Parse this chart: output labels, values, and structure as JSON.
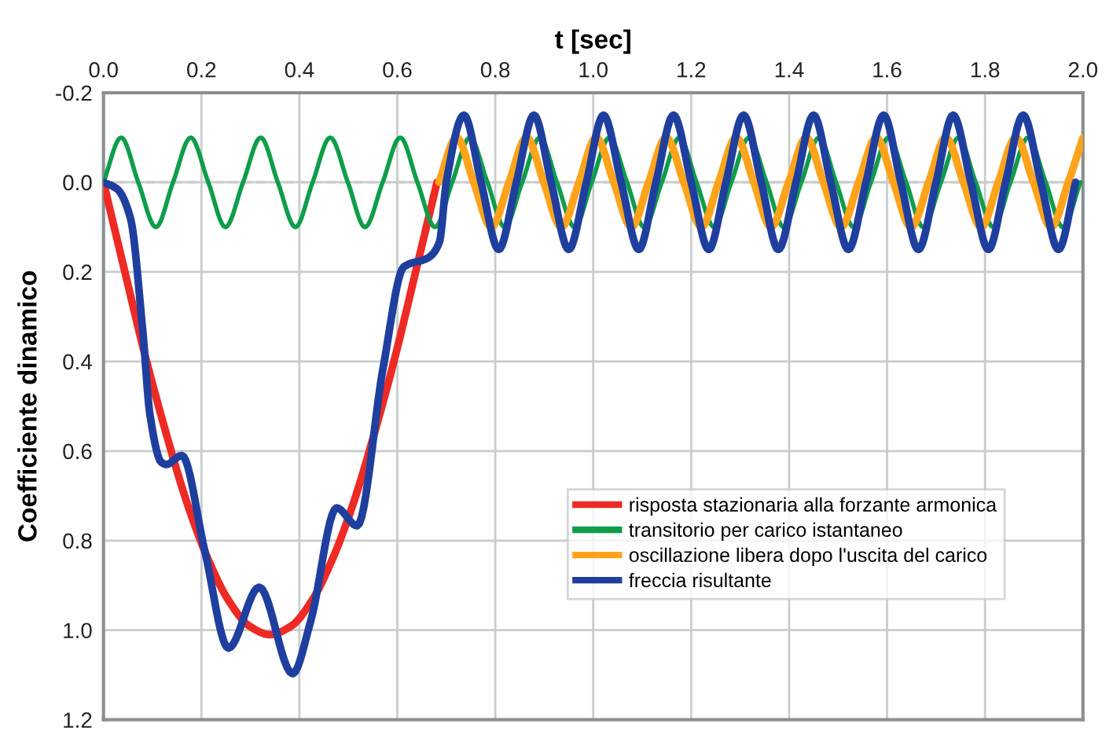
{
  "chart_data": {
    "type": "line",
    "xlabel": "t [sec]",
    "ylabel": "Coefficiente dinamico",
    "xlim": [
      0.0,
      2.0
    ],
    "xticks": [
      {
        "value": 0,
        "label": "0.0"
      },
      0.2,
      0.4,
      0.6,
      0.8,
      {
        "value": 1,
        "label": "1.0"
      },
      1.2,
      1.4,
      1.6,
      1.8,
      {
        "value": 2,
        "label": "2.0"
      }
    ],
    "ylim": [
      1.2,
      -0.2
    ],
    "yticks": [
      -0.2,
      {
        "value": 0,
        "label": "0.0"
      },
      0.2,
      0.4,
      0.6,
      0.8,
      {
        "value": 1,
        "label": "1.0"
      },
      1.2
    ],
    "grid": true,
    "legend": "center right",
    "marker": "none",
    "line_style": "solid",
    "ref_lines": [
      {
        "axis": "y",
        "value": 0.0,
        "color": "#cccccc",
        "line_style": "dashed"
      }
    ],
    "series": [
      {
        "name": "risposta stazionaria alla forzante armonica",
        "color": "#ee2a24",
        "x": [
          0,
          0.043,
          0.085,
          0.128,
          0.17,
          0.213,
          0.255,
          0.298,
          0.34,
          0.383,
          0.426,
          0.468,
          0.511,
          0.553,
          0.596,
          0.638,
          0.681
        ],
        "values": [
          0,
          0.197,
          0.387,
          0.561,
          0.714,
          0.84,
          0.933,
          0.991,
          1.01,
          0.991,
          0.933,
          0.84,
          0.714,
          0.561,
          0.387,
          0.197,
          0
        ]
      },
      {
        "name": "transitorio per carico istantaneo",
        "color": "#0f9d4a",
        "x": [
          0,
          0.036,
          0.071,
          0.107,
          0.142,
          0.178,
          0.214,
          0.249,
          0.285,
          0.321,
          0.356,
          0.392,
          0.427,
          0.463,
          0.499,
          0.534,
          0.57,
          0.606,
          0.641,
          0.677,
          0.712,
          0.748,
          0.784,
          0.819,
          0.855,
          0.891,
          0.926,
          0.962,
          0.997,
          1.033,
          1.069,
          1.104,
          1.14,
          1.176,
          1.211,
          1.247,
          1.282,
          1.318,
          1.354,
          1.389,
          1.425,
          1.461,
          1.496,
          1.532,
          1.567,
          1.603,
          1.639,
          1.674,
          1.71,
          1.746,
          1.781,
          1.817,
          1.852,
          1.888,
          1.924,
          1.959,
          1.995
        ],
        "values": [
          0,
          -0.1,
          0,
          0.1,
          0,
          -0.1,
          0,
          0.1,
          0,
          -0.1,
          0,
          0.1,
          0,
          -0.1,
          0,
          0.1,
          0,
          -0.1,
          0,
          0.1,
          0,
          -0.1,
          0,
          0.1,
          0,
          -0.1,
          0,
          0.1,
          0,
          -0.1,
          0,
          0.1,
          0,
          -0.1,
          0,
          0.1,
          0,
          -0.1,
          0,
          0.1,
          0,
          -0.1,
          0,
          0.1,
          0,
          -0.1,
          0,
          0.1,
          0,
          -0.1,
          0,
          0.1,
          0,
          -0.1,
          0,
          0.1,
          0
        ]
      },
      {
        "name": "oscillazione libera dopo l'uscita del carico",
        "color": "#ffa31a",
        "x": [
          0.685,
          0.721,
          0.756,
          0.792,
          0.828,
          0.864,
          0.899,
          0.935,
          0.971,
          1.006,
          1.042,
          1.078,
          1.113,
          1.149,
          1.185,
          1.221,
          1.256,
          1.292,
          1.328,
          1.363,
          1.399,
          1.435,
          1.47,
          1.506,
          1.542,
          1.578,
          1.613,
          1.649,
          1.685,
          1.72,
          1.756,
          1.792,
          1.827,
          1.863,
          1.899,
          1.935,
          1.97,
          2.0
        ],
        "values": [
          0,
          -0.1,
          0,
          0.1,
          0,
          -0.1,
          0,
          0.1,
          0,
          -0.1,
          0,
          0.1,
          0,
          -0.1,
          0,
          0.1,
          0,
          -0.1,
          0,
          0.1,
          0,
          -0.1,
          0,
          0.1,
          0,
          -0.1,
          0,
          0.1,
          0,
          -0.1,
          0,
          0.1,
          0,
          -0.1,
          0,
          0.1,
          0,
          -0.099
        ]
      },
      {
        "name": "freccia risultante",
        "color": "#1f3f9f",
        "x": [
          0,
          0.028,
          0.055,
          0.08,
          0.095,
          0.118,
          0.128,
          0.16,
          0.207,
          0.255,
          0.318,
          0.386,
          0.423,
          0.476,
          0.518,
          0.571,
          0.613,
          0.665,
          0.686,
          0.7,
          0.736,
          0.771,
          0.807,
          0.843,
          0.879,
          0.914,
          0.95,
          0.986,
          1.021,
          1.057,
          1.093,
          1.128,
          1.164,
          1.2,
          1.236,
          1.271,
          1.307,
          1.343,
          1.378,
          1.414,
          1.45,
          1.485,
          1.521,
          1.557,
          1.593,
          1.628,
          1.664,
          1.7,
          1.735,
          1.771,
          1.807,
          1.842,
          1.878,
          1.914,
          1.95,
          1.985
        ],
        "values": [
          0,
          0.015,
          0.08,
          0.33,
          0.52,
          0.625,
          0.63,
          0.61,
          0.824,
          1.04,
          0.904,
          1.097,
          0.98,
          0.727,
          0.767,
          0.414,
          0.189,
          0.167,
          0.133,
          0,
          -0.15,
          0,
          0.15,
          0,
          -0.15,
          0,
          0.15,
          0,
          -0.15,
          0,
          0.15,
          0,
          -0.15,
          0,
          0.15,
          0,
          -0.15,
          0,
          0.15,
          0,
          -0.15,
          0,
          0.15,
          0,
          -0.15,
          0,
          0.15,
          0,
          -0.15,
          0,
          0.15,
          0,
          -0.15,
          0,
          0.15,
          0
        ]
      }
    ]
  }
}
